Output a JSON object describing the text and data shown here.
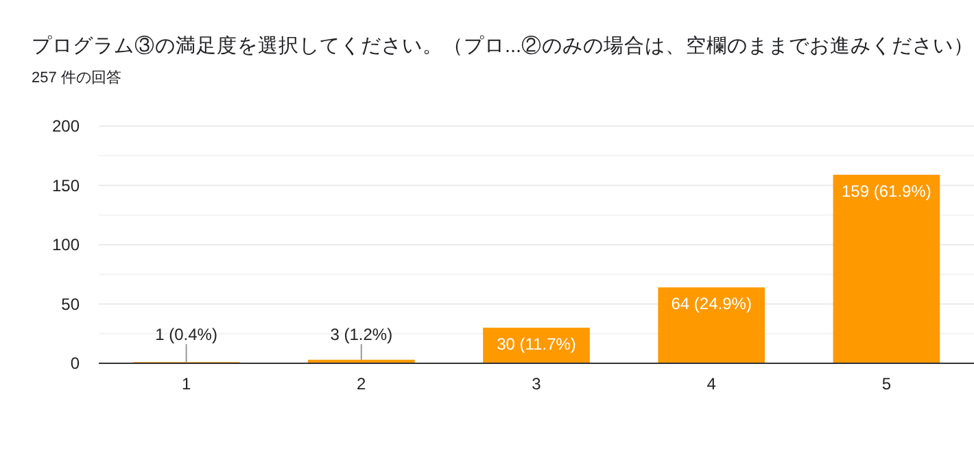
{
  "chart_data": {
    "type": "bar",
    "title": "プログラム③の満足度を選択してください。（プロ...②のみの場合は、空欄のままでお進みください）",
    "subtitle": "257 件の回答",
    "categories": [
      "1",
      "2",
      "3",
      "4",
      "5"
    ],
    "values": [
      1,
      3,
      30,
      64,
      159
    ],
    "value_labels": [
      "1 (0.4%)",
      "3 (1.2%)",
      "30 (11.7%)",
      "64 (24.9%)",
      "159 (61.9%)"
    ],
    "color": "#ff9900",
    "ylim": [
      0,
      200
    ],
    "yticks": [
      0,
      {
        "value": 25,
        "label": null
      },
      50,
      {
        "value": 75,
        "label": null
      },
      100,
      {
        "value": 125,
        "label": null
      },
      150,
      {
        "value": 175,
        "label": null
      },
      200
    ],
    "grid": "y"
  }
}
